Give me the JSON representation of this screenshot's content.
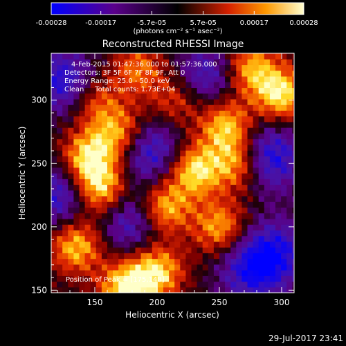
{
  "colorbar": {
    "tick_labels": [
      "-0.00028",
      "-0.00017",
      "-5.7e-05",
      "5.7e-05",
      "0.00017",
      "0.00028"
    ],
    "tick_values": [
      -0.00028,
      -0.00017,
      -5.7e-05,
      5.7e-05,
      0.00017,
      0.00028
    ],
    "range": [
      -0.00028,
      0.00028
    ],
    "units_label": "(photons cm⁻² s⁻¹ asec⁻²)"
  },
  "chart_data": {
    "type": "heatmap",
    "title": "Reconstructed RHESSI Image",
    "xlabel": "Heliocentric X (arcsec)",
    "ylabel": "Heliocentric Y (arcsec)",
    "xlim": [
      115,
      310
    ],
    "ylim": [
      148,
      337
    ],
    "x_ticks": [
      150,
      200,
      250,
      300
    ],
    "y_ticks": [
      150,
      200,
      250,
      300
    ],
    "annotations": [
      "4-Feb-2015 01:47:36.000 to 01:57:36.000",
      "Detectors: 3F 5F 6F 7F 8F 9F, Att 0",
      "Energy Range: 25.0 - 50.0 keV",
      "Clean     Total counts: 1.73E+04"
    ],
    "peak_label": "Position of Peak = [175,148]",
    "peak_position": [
      175,
      148
    ],
    "hotspots": [
      {
        "x": 145,
        "y": 255,
        "level": 0.95
      },
      {
        "x": 155,
        "y": 230,
        "level": 0.9
      },
      {
        "x": 170,
        "y": 275,
        "level": 0.75
      },
      {
        "x": 135,
        "y": 185,
        "level": 0.85
      },
      {
        "x": 175,
        "y": 152,
        "level": 1.0
      },
      {
        "x": 200,
        "y": 165,
        "level": 0.9
      },
      {
        "x": 205,
        "y": 215,
        "level": 0.9
      },
      {
        "x": 230,
        "y": 245,
        "level": 0.95
      },
      {
        "x": 255,
        "y": 280,
        "level": 0.85
      },
      {
        "x": 265,
        "y": 250,
        "level": 0.8
      },
      {
        "x": 300,
        "y": 305,
        "level": 0.95
      },
      {
        "x": 275,
        "y": 325,
        "level": 0.8
      },
      {
        "x": 250,
        "y": 200,
        "level": 0.75
      },
      {
        "x": 185,
        "y": 325,
        "level": 0.6
      },
      {
        "x": 150,
        "y": 300,
        "level": 0.55
      },
      {
        "x": 215,
        "y": 300,
        "level": 0.5
      }
    ],
    "coldspots": [
      {
        "x": 125,
        "y": 315,
        "level": 0.9
      },
      {
        "x": 195,
        "y": 260,
        "level": 0.85
      },
      {
        "x": 290,
        "y": 255,
        "level": 1.0
      },
      {
        "x": 295,
        "y": 180,
        "level": 0.85
      },
      {
        "x": 120,
        "y": 225,
        "level": 0.8
      },
      {
        "x": 240,
        "y": 320,
        "level": 0.7
      },
      {
        "x": 275,
        "y": 165,
        "level": 0.8
      },
      {
        "x": 180,
        "y": 205,
        "level": 0.75
      }
    ]
  },
  "timestamp": "29-Jul-2017 23:41",
  "colors": {
    "background": "#000000",
    "text": "#ffffff"
  }
}
